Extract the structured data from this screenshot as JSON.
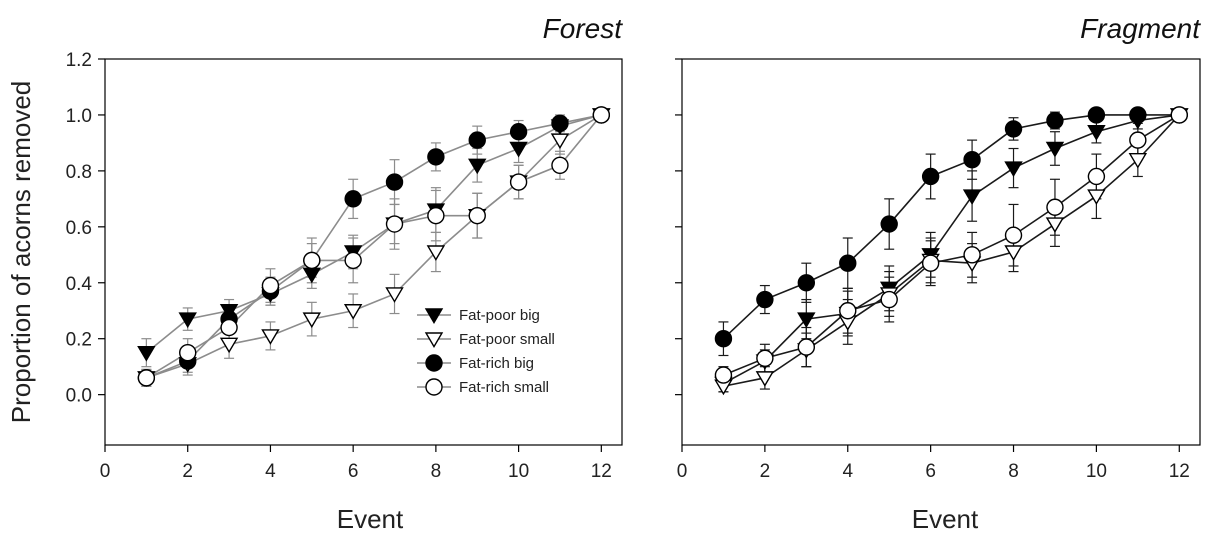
{
  "chart_data": [
    {
      "type": "line",
      "title": "Forest",
      "xlabel": "Event",
      "ylabel": "Proportion of acorns removed",
      "xlim": [
        0,
        12.5
      ],
      "ylim": [
        -0.18,
        1.2
      ],
      "x_ticks": [
        0,
        2,
        4,
        6,
        8,
        10,
        12
      ],
      "y_ticks": [
        0.0,
        0.2,
        0.4,
        0.6,
        0.8,
        1.0,
        1.2
      ],
      "x_tick_labels": [
        "0",
        "2",
        "4",
        "6",
        "8",
        "10",
        "12"
      ],
      "y_tick_labels": [
        "0.0",
        "0.2",
        "0.4",
        "0.6",
        "0.8",
        "1.0",
        "1.2"
      ],
      "grid": false,
      "legend_position": "bottom-right",
      "line_color": "#8c8c8c",
      "x": [
        1,
        2,
        3,
        4,
        5,
        6,
        7,
        8,
        9,
        10,
        11,
        12
      ],
      "series": [
        {
          "name": "Fat-poor big",
          "marker": "triangle-down-filled",
          "values": [
            0.15,
            0.27,
            0.3,
            0.36,
            0.43,
            0.51,
            0.61,
            0.66,
            0.82,
            0.88,
            0.96,
            1.0
          ],
          "errors": [
            0.05,
            0.04,
            0.04,
            0.04,
            0.05,
            0.06,
            0.07,
            0.08,
            0.06,
            0.05,
            0.03,
            0.0
          ]
        },
        {
          "name": "Fat-poor small",
          "marker": "triangle-down-open",
          "values": [
            0.06,
            0.11,
            0.18,
            0.21,
            0.27,
            0.3,
            0.36,
            0.51,
            0.64,
            0.76,
            0.91,
            1.0
          ],
          "errors": [
            0.03,
            0.04,
            0.05,
            0.05,
            0.06,
            0.06,
            0.07,
            0.07,
            0.08,
            0.06,
            0.05,
            0.0
          ]
        },
        {
          "name": "Fat-rich big",
          "marker": "circle-filled",
          "values": [
            0.06,
            0.12,
            0.27,
            0.37,
            0.48,
            0.7,
            0.76,
            0.85,
            0.91,
            0.94,
            0.97,
            1.0
          ],
          "errors": [
            0.03,
            0.04,
            0.05,
            0.05,
            0.06,
            0.07,
            0.08,
            0.05,
            0.05,
            0.04,
            0.03,
            0.0
          ]
        },
        {
          "name": "Fat-rich small",
          "marker": "circle-open",
          "values": [
            0.06,
            0.15,
            0.24,
            0.39,
            0.48,
            0.48,
            0.61,
            0.64,
            0.64,
            0.76,
            0.82,
            1.0
          ],
          "errors": [
            0.03,
            0.05,
            0.06,
            0.06,
            0.08,
            0.08,
            0.09,
            0.09,
            0.08,
            0.06,
            0.05,
            0.0
          ]
        }
      ]
    },
    {
      "type": "line",
      "title": "Fragment",
      "xlabel": "Event",
      "ylabel": "",
      "xlim": [
        0,
        12.5
      ],
      "ylim": [
        -0.18,
        1.2
      ],
      "x_ticks": [
        0,
        2,
        4,
        6,
        8,
        10,
        12
      ],
      "y_ticks": [
        0.0,
        0.2,
        0.4,
        0.6,
        0.8,
        1.0,
        1.2
      ],
      "x_tick_labels": [
        "0",
        "2",
        "4",
        "6",
        "8",
        "10",
        "12"
      ],
      "y_tick_labels": [],
      "grid": false,
      "legend_position": "none",
      "line_color": "#1a1a1a",
      "x": [
        1,
        2,
        3,
        4,
        5,
        6,
        7,
        8,
        9,
        10,
        11,
        12
      ],
      "series": [
        {
          "name": "Fat-poor big",
          "marker": "triangle-down-filled",
          "values": [
            0.04,
            0.12,
            0.27,
            0.29,
            0.38,
            0.5,
            0.71,
            0.81,
            0.88,
            0.94,
            0.98,
            1.0
          ],
          "errors": [
            0.03,
            0.04,
            0.07,
            0.08,
            0.08,
            0.08,
            0.09,
            0.07,
            0.06,
            0.04,
            0.03,
            0.0
          ]
        },
        {
          "name": "Fat-poor small",
          "marker": "triangle-down-open",
          "values": [
            0.03,
            0.06,
            0.16,
            0.26,
            0.36,
            0.48,
            0.47,
            0.51,
            0.61,
            0.71,
            0.84,
            1.0
          ],
          "errors": [
            0.02,
            0.04,
            0.06,
            0.08,
            0.08,
            0.08,
            0.07,
            0.07,
            0.08,
            0.08,
            0.06,
            0.0
          ]
        },
        {
          "name": "Fat-rich big",
          "marker": "circle-filled",
          "values": [
            0.2,
            0.34,
            0.4,
            0.47,
            0.61,
            0.78,
            0.84,
            0.95,
            0.98,
            1.0,
            1.0,
            1.0
          ],
          "errors": [
            0.06,
            0.05,
            0.07,
            0.09,
            0.09,
            0.08,
            0.07,
            0.04,
            0.03,
            0.02,
            0.01,
            0.0
          ]
        },
        {
          "name": "Fat-rich small",
          "marker": "circle-open",
          "values": [
            0.07,
            0.13,
            0.17,
            0.3,
            0.34,
            0.47,
            0.5,
            0.57,
            0.67,
            0.78,
            0.91,
            1.0
          ],
          "errors": [
            0.03,
            0.05,
            0.07,
            0.08,
            0.08,
            0.08,
            0.08,
            0.11,
            0.1,
            0.08,
            0.06,
            0.0
          ]
        }
      ]
    }
  ]
}
